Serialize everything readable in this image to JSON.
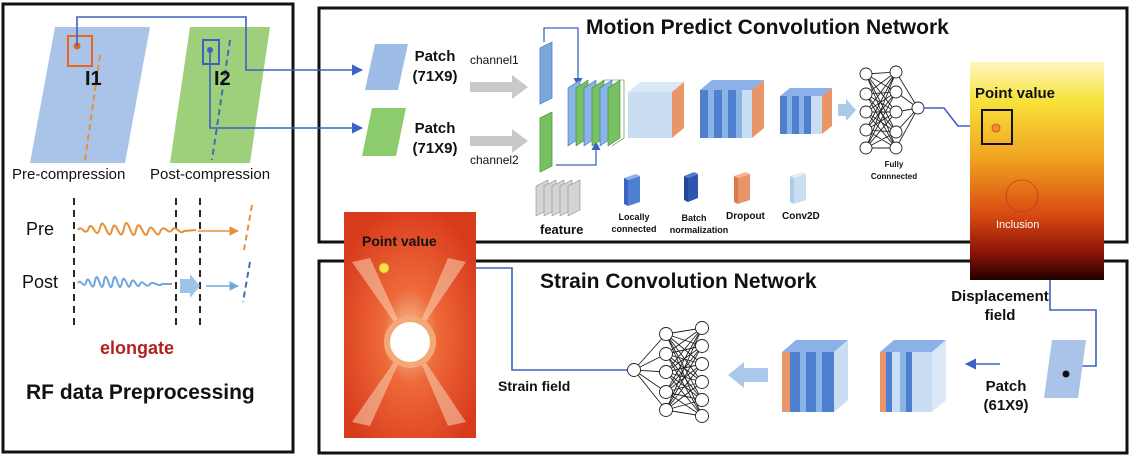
{
  "left_panel": {
    "label_i1": "I1",
    "label_i2": "I2",
    "pre_compression": "Pre-compression",
    "post_compression": "Post-compression",
    "pre": "Pre",
    "post": "Post",
    "elongate": "elongate",
    "title": "RF data Preprocessing"
  },
  "motion_panel": {
    "title": "Motion Predict Convolution Network",
    "patch1_name": "Patch",
    "patch1_size": "(71X9)",
    "patch2_name": "Patch",
    "patch2_size": "(71X9)",
    "channel1": "channel1",
    "channel2": "channel2",
    "feature": "feature",
    "fully_connected_1": "Fully",
    "fully_connected_2": "Connnected",
    "legend": {
      "locally_1": "Locally",
      "locally_2": "connected",
      "batch_1": "Batch",
      "batch_2": "normalization",
      "dropout": "Dropout",
      "conv2d": "Conv2D"
    },
    "point_value": "Point value",
    "inclusion": "Inclusion"
  },
  "strain_panel": {
    "title": "Strain Convolution Network",
    "displacement_1": "Displacement",
    "displacement_2": "field",
    "patch_name": "Patch",
    "patch_size": "(61X9)",
    "strain_field": "Strain field",
    "point_value": "Point value"
  },
  "colors": {
    "blue_patch": "#9dbde6",
    "green_patch": "#8ccc6e",
    "blue_cube": "#4f7fcf",
    "dropout": "#e8956a",
    "conv2d": "#c9def2",
    "arrow": "#4a6fc4",
    "orange_wave": "#e69138",
    "blue_wave": "#6fa8dc",
    "elongate": "#b22222"
  }
}
